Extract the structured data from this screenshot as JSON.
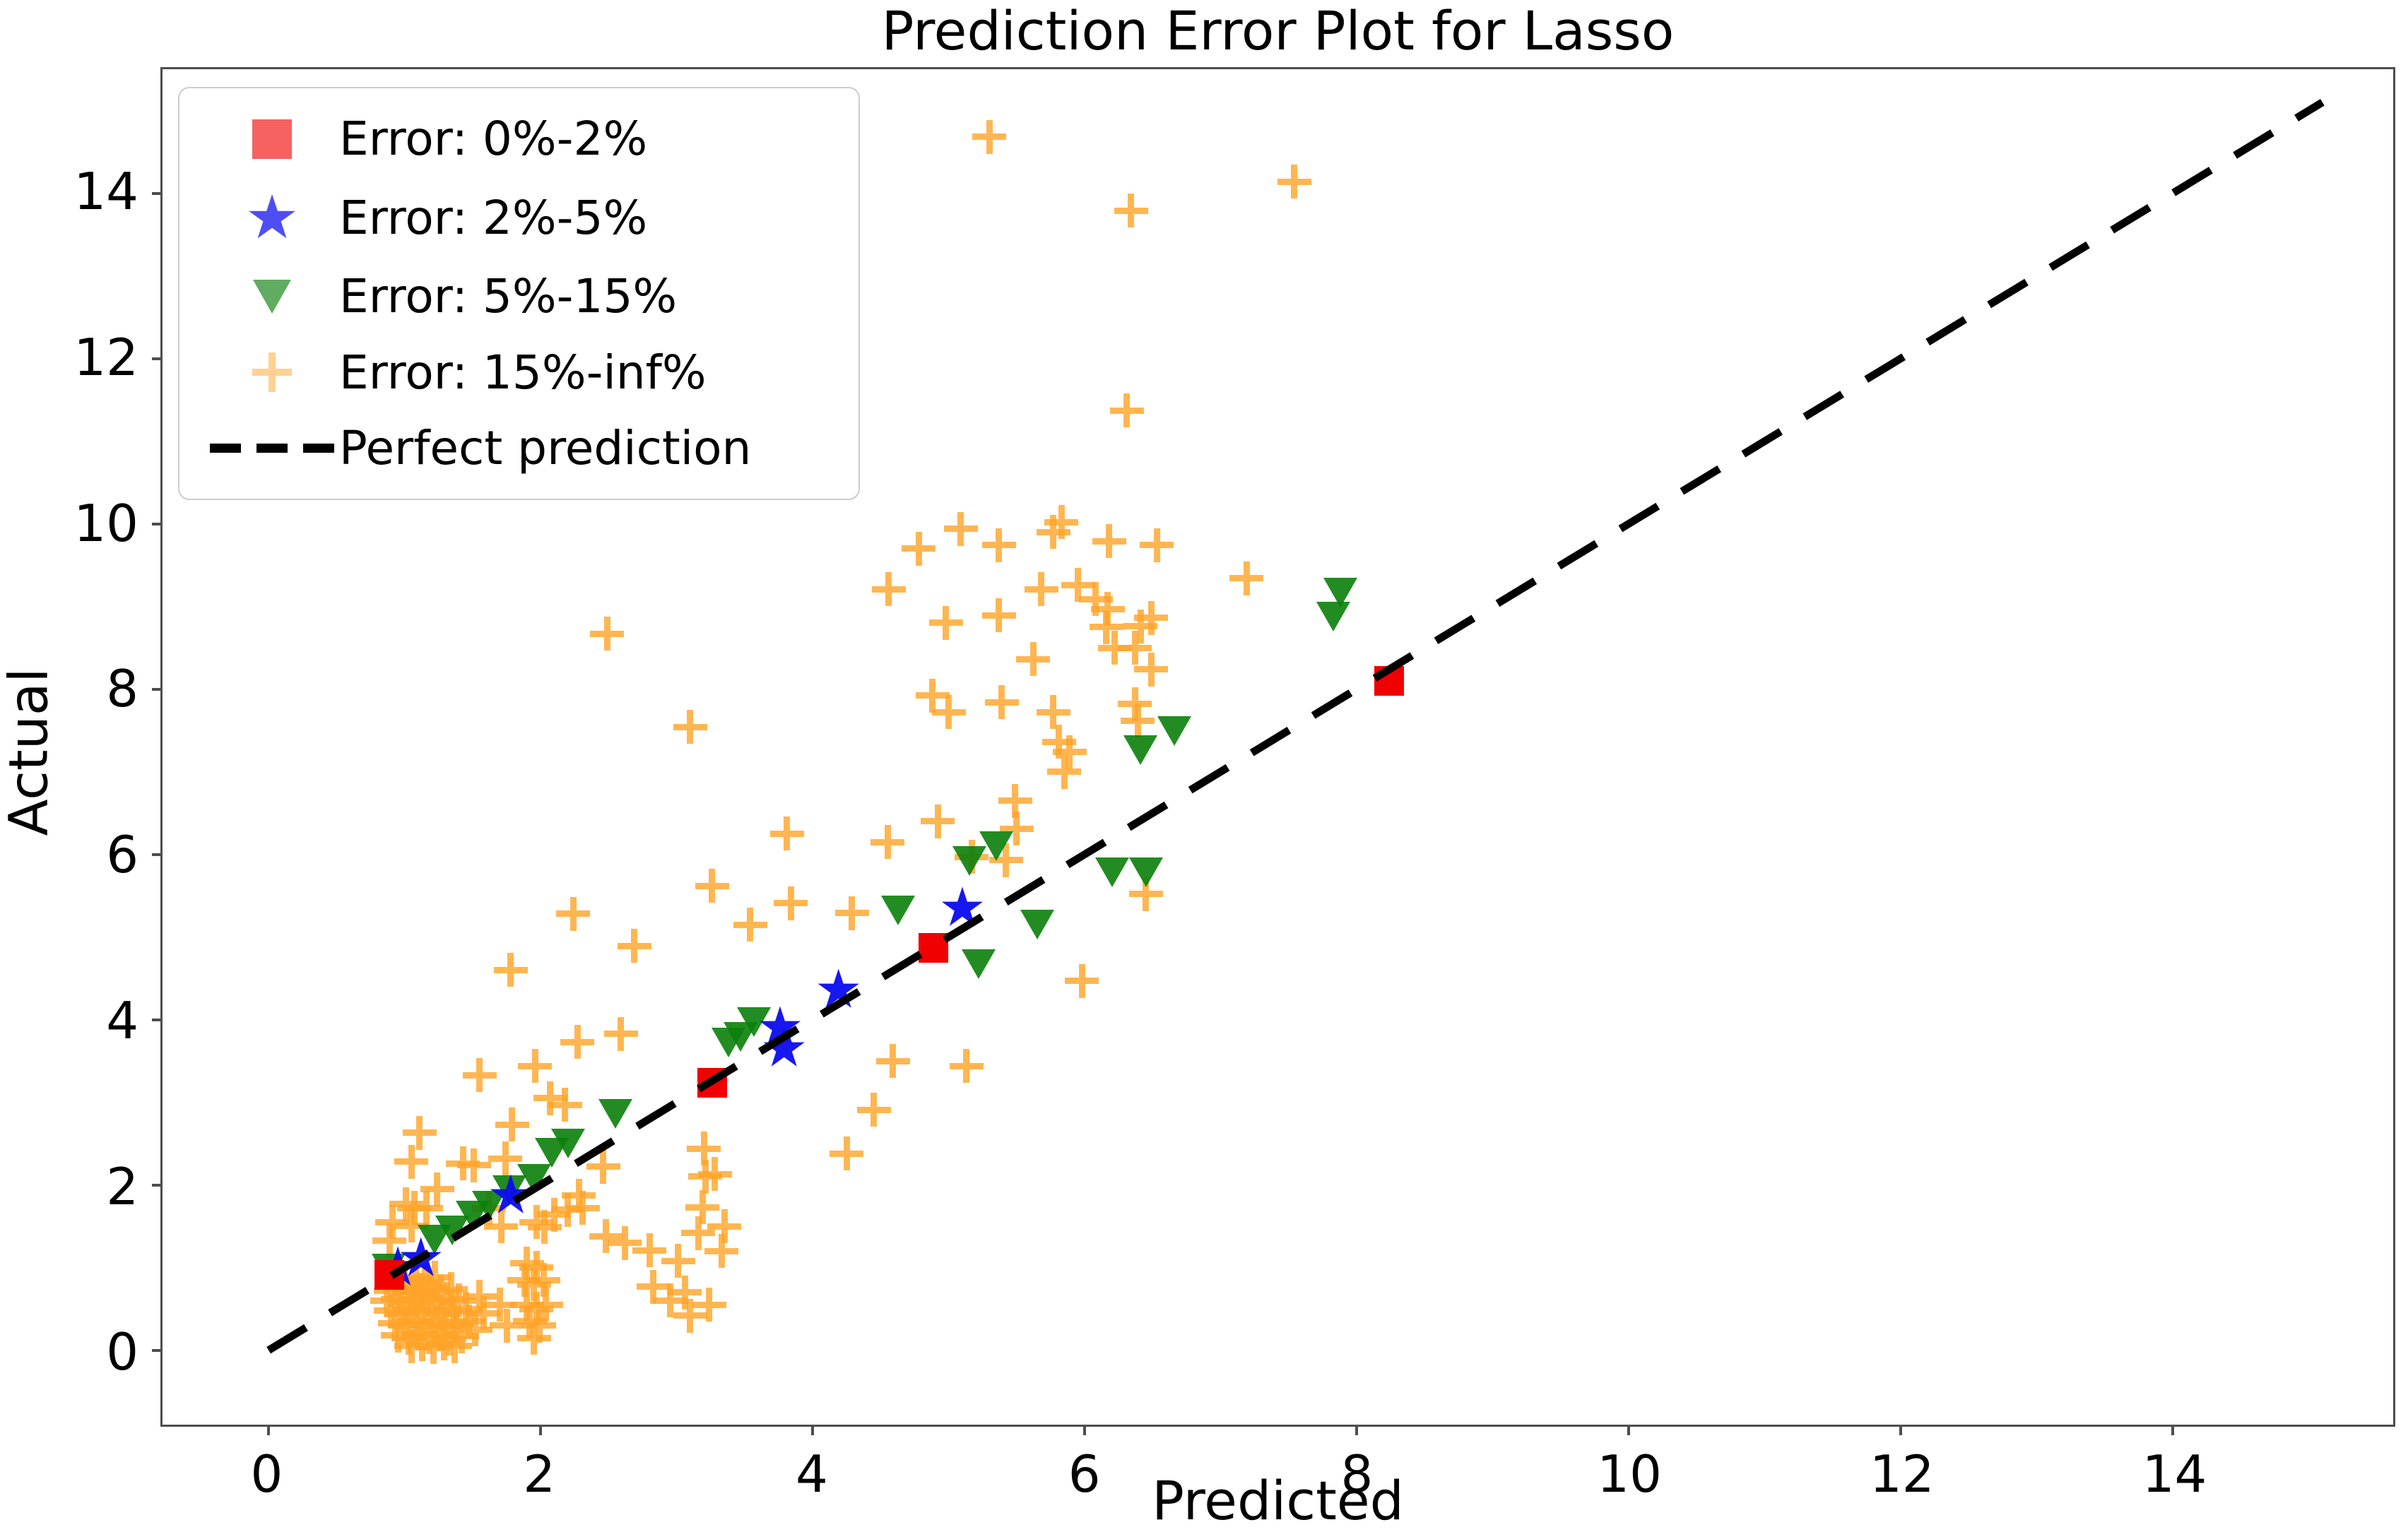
{
  "chart_data": {
    "type": "scatter",
    "title": "Prediction Error Plot for Lasso",
    "xlabel": "Predicted",
    "ylabel": "Actual",
    "xlim": [
      -0.78,
      15.62
    ],
    "ylim": [
      -0.9,
      15.5
    ],
    "xticks": [
      0,
      2,
      4,
      6,
      8,
      10,
      12,
      14
    ],
    "yticks": [
      0,
      2,
      4,
      6,
      8,
      10,
      12,
      14
    ],
    "grid": false,
    "legend_position": "upper left",
    "axis_color": "#4d4d4d",
    "series": [
      {
        "name": "Error: 15%-inf%",
        "marker": "plus",
        "color": "#ffa428",
        "opacity": 0.8,
        "points": [
          [
            5.3,
            14.68
          ],
          [
            7.54,
            14.14
          ],
          [
            6.34,
            13.79
          ],
          [
            6.31,
            11.37
          ],
          [
            4.56,
            9.21
          ],
          [
            4.78,
            9.7
          ],
          [
            5.09,
            9.94
          ],
          [
            5.37,
            9.74
          ],
          [
            5.77,
            9.9
          ],
          [
            6.18,
            9.79
          ],
          [
            6.53,
            9.74
          ],
          [
            5.83,
            10.02
          ],
          [
            5.95,
            9.26
          ],
          [
            5.68,
            9.21
          ],
          [
            6.08,
            9.09
          ],
          [
            5.37,
            8.89
          ],
          [
            6.17,
            8.97
          ],
          [
            6.16,
            8.75
          ],
          [
            6.49,
            8.86
          ],
          [
            7.19,
            9.34
          ],
          [
            4.98,
            8.8
          ],
          [
            6.41,
            8.76
          ],
          [
            6.37,
            8.5
          ],
          [
            6.22,
            8.5
          ],
          [
            5.62,
            8.36
          ],
          [
            6.49,
            8.24
          ],
          [
            2.49,
            8.67
          ],
          [
            5.0,
            7.72
          ],
          [
            5.39,
            7.84
          ],
          [
            5.77,
            7.72
          ],
          [
            6.39,
            7.62
          ],
          [
            4.88,
            7.92
          ],
          [
            6.37,
            7.82
          ],
          [
            5.81,
            7.36
          ],
          [
            5.89,
            7.24
          ],
          [
            5.85,
            7.0
          ],
          [
            3.1,
            7.54
          ],
          [
            4.92,
            6.4
          ],
          [
            5.5,
            6.31
          ],
          [
            5.49,
            6.65
          ],
          [
            5.17,
            5.97
          ],
          [
            5.42,
            5.93
          ],
          [
            6.45,
            5.52
          ],
          [
            3.81,
            6.25
          ],
          [
            4.55,
            6.15
          ],
          [
            3.26,
            5.62
          ],
          [
            3.84,
            5.41
          ],
          [
            4.29,
            5.29
          ],
          [
            3.54,
            5.15
          ],
          [
            2.24,
            5.28
          ],
          [
            5.98,
            4.47
          ],
          [
            4.59,
            3.5
          ],
          [
            5.13,
            3.44
          ],
          [
            4.45,
            2.91
          ],
          [
            4.25,
            2.38
          ],
          [
            1.78,
            4.6
          ],
          [
            2.69,
            4.89
          ],
          [
            1.55,
            3.33
          ],
          [
            1.96,
            3.44
          ],
          [
            2.27,
            3.73
          ],
          [
            2.59,
            3.83
          ],
          [
            2.07,
            3.05
          ],
          [
            2.18,
            2.97
          ],
          [
            2.46,
            2.22
          ],
          [
            1.11,
            2.63
          ],
          [
            1.05,
            2.28
          ],
          [
            1.24,
            1.95
          ],
          [
            1.43,
            2.26
          ],
          [
            1.51,
            2.24
          ],
          [
            1.79,
            2.73
          ],
          [
            1.74,
            2.32
          ],
          [
            1.01,
            1.77
          ],
          [
            0.91,
            1.55
          ],
          [
            1.05,
            1.51
          ],
          [
            1.16,
            1.72
          ],
          [
            1.07,
            1.72
          ],
          [
            0.89,
            1.33
          ],
          [
            1.62,
            1.72
          ],
          [
            1.71,
            1.5
          ],
          [
            1.97,
            1.55
          ],
          [
            2.03,
            1.49
          ],
          [
            2.1,
            1.64
          ],
          [
            2.2,
            1.7
          ],
          [
            2.28,
            1.87
          ],
          [
            2.31,
            1.72
          ],
          [
            2.48,
            1.38
          ],
          [
            2.62,
            1.3
          ],
          [
            2.8,
            1.21
          ],
          [
            3.01,
            1.08
          ],
          [
            2.83,
            0.77
          ],
          [
            3.06,
            0.7
          ],
          [
            3.2,
            2.44
          ],
          [
            3.21,
            2.1
          ],
          [
            3.28,
            2.13
          ],
          [
            3.19,
            1.73
          ],
          [
            3.16,
            1.42
          ],
          [
            3.35,
            1.5
          ],
          [
            3.33,
            1.2
          ],
          [
            2.95,
            0.6
          ],
          [
            3.1,
            0.42
          ],
          [
            3.24,
            0.55
          ],
          [
            0.93,
            0.85
          ],
          [
            1.0,
            0.88
          ],
          [
            1.08,
            0.86
          ],
          [
            1.15,
            0.82
          ],
          [
            1.22,
            0.88
          ],
          [
            0.9,
            0.72
          ],
          [
            0.97,
            0.75
          ],
          [
            1.04,
            0.7
          ],
          [
            1.12,
            0.73
          ],
          [
            1.19,
            0.76
          ],
          [
            1.27,
            0.71
          ],
          [
            1.34,
            0.74
          ],
          [
            0.87,
            0.6
          ],
          [
            0.95,
            0.62
          ],
          [
            1.02,
            0.58
          ],
          [
            1.09,
            0.61
          ],
          [
            1.17,
            0.63
          ],
          [
            1.24,
            0.58
          ],
          [
            1.31,
            0.62
          ],
          [
            1.4,
            0.6
          ],
          [
            0.9,
            0.48
          ],
          [
            0.98,
            0.45
          ],
          [
            1.05,
            0.5
          ],
          [
            1.13,
            0.46
          ],
          [
            1.2,
            0.49
          ],
          [
            1.28,
            0.44
          ],
          [
            1.36,
            0.47
          ],
          [
            1.45,
            0.5
          ],
          [
            0.93,
            0.33
          ],
          [
            1.0,
            0.3
          ],
          [
            1.08,
            0.35
          ],
          [
            1.15,
            0.31
          ],
          [
            1.23,
            0.34
          ],
          [
            1.3,
            0.29
          ],
          [
            1.38,
            0.32
          ],
          [
            1.47,
            0.35
          ],
          [
            0.95,
            0.18
          ],
          [
            1.03,
            0.15
          ],
          [
            1.1,
            0.2
          ],
          [
            1.18,
            0.16
          ],
          [
            1.26,
            0.19
          ],
          [
            1.33,
            0.14
          ],
          [
            1.42,
            0.17
          ],
          [
            1.05,
            0.05
          ],
          [
            1.13,
            0.07
          ],
          [
            1.21,
            0.04
          ],
          [
            1.29,
            0.08
          ],
          [
            1.37,
            0.05
          ],
          [
            1.52,
            0.25
          ],
          [
            1.58,
            0.45
          ],
          [
            1.55,
            0.65
          ],
          [
            1.9,
            1.05
          ],
          [
            1.97,
            1.0
          ],
          [
            1.88,
            0.85
          ],
          [
            1.95,
            0.8
          ],
          [
            2.02,
            0.85
          ],
          [
            1.7,
            0.55
          ],
          [
            1.9,
            0.55
          ],
          [
            1.97,
            0.5
          ],
          [
            2.04,
            0.55
          ],
          [
            1.92,
            0.35
          ],
          [
            1.99,
            0.3
          ],
          [
            1.95,
            0.15
          ],
          [
            1.75,
            0.3
          ]
        ]
      },
      {
        "name": "Error: 5%-15%",
        "marker": "triangle-down",
        "color": "#0a800a",
        "opacity": 0.9,
        "points": [
          [
            0.88,
            0.99
          ],
          [
            1.22,
            1.34
          ],
          [
            1.35,
            1.45
          ],
          [
            1.5,
            1.63
          ],
          [
            1.62,
            1.75
          ],
          [
            1.77,
            1.94
          ],
          [
            1.95,
            2.07
          ],
          [
            2.08,
            2.39
          ],
          [
            2.2,
            2.5
          ],
          [
            2.55,
            2.86
          ],
          [
            3.38,
            3.72
          ],
          [
            3.47,
            3.79
          ],
          [
            3.57,
            3.97
          ],
          [
            4.63,
            5.32
          ],
          [
            5.15,
            5.92
          ],
          [
            5.35,
            6.1
          ],
          [
            5.22,
            4.67
          ],
          [
            5.65,
            5.15
          ],
          [
            6.2,
            5.78
          ],
          [
            6.45,
            5.78
          ],
          [
            6.41,
            7.26
          ],
          [
            6.66,
            7.49
          ],
          [
            7.83,
            8.88
          ],
          [
            7.88,
            9.17
          ]
        ]
      },
      {
        "name": "Error: 2%-5%",
        "marker": "star",
        "color": "#0b0bf0",
        "opacity": 0.95,
        "points": [
          [
            0.95,
            0.97
          ],
          [
            1.12,
            1.08
          ],
          [
            1.78,
            1.84
          ],
          [
            3.76,
            3.88
          ],
          [
            3.79,
            3.62
          ],
          [
            4.19,
            4.33
          ],
          [
            5.1,
            5.32
          ]
        ]
      },
      {
        "name": "Error: 0%-2%",
        "marker": "square",
        "color": "#f00000",
        "opacity": 1,
        "points": [
          [
            0.89,
            0.91
          ],
          [
            3.26,
            3.24
          ],
          [
            4.89,
            4.87
          ],
          [
            8.24,
            8.1
          ]
        ]
      }
    ],
    "reference_line": {
      "label": "Perfect prediction",
      "style": "dashed",
      "color": "#000000",
      "from": [
        0.0,
        0.0
      ],
      "to": [
        15.1,
        15.1
      ]
    },
    "legend_order": [
      "Error: 0%-2%",
      "Error: 2%-5%",
      "Error: 5%-15%",
      "Error: 15%-inf%",
      "Perfect prediction"
    ]
  }
}
